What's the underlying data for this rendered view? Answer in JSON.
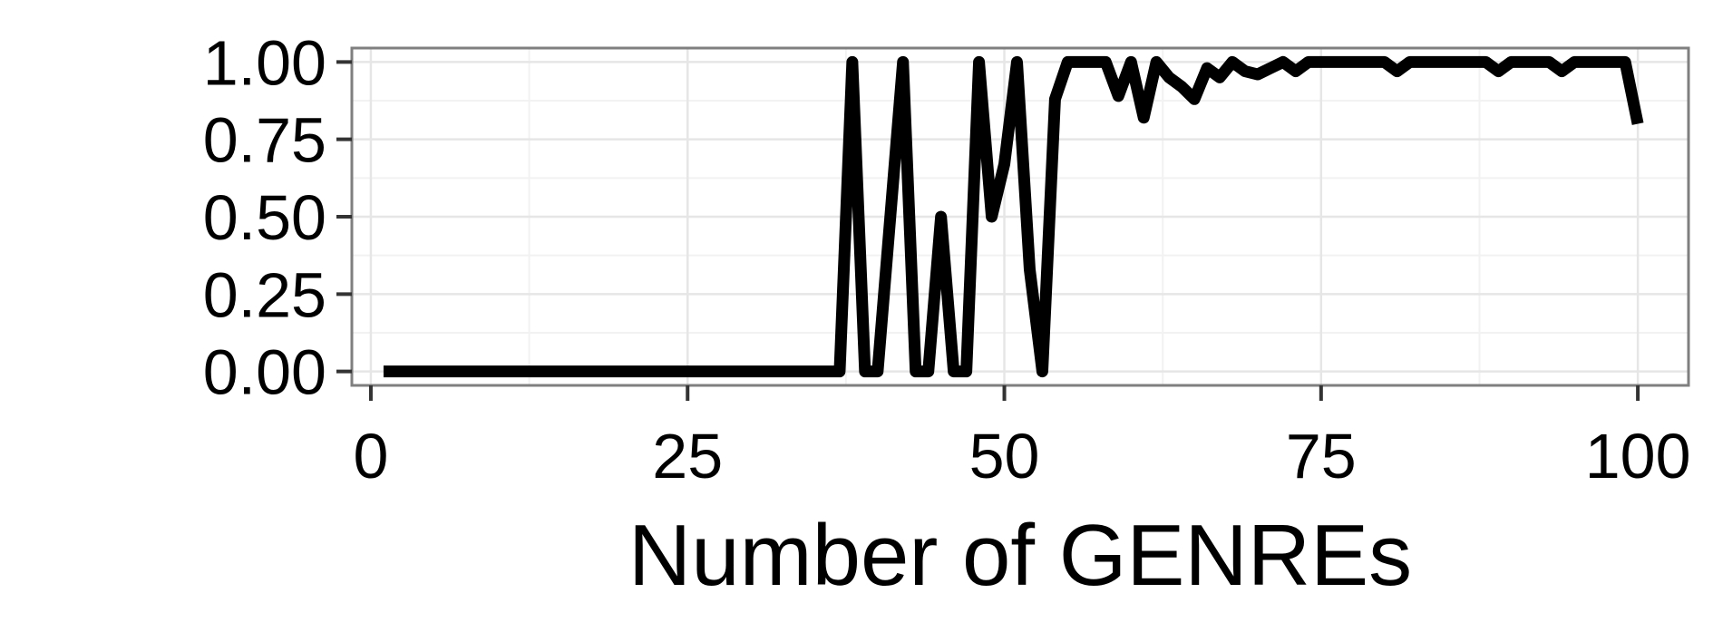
{
  "chart_data": {
    "type": "line",
    "title": "",
    "xlabel": "Number of GENREs",
    "ylabel": "",
    "xlim": [
      -1.5,
      104
    ],
    "ylim": [
      -0.045,
      1.045
    ],
    "x_ticks": [
      0,
      25,
      50,
      75,
      100
    ],
    "x_tick_labels": [
      "0",
      "25",
      "50",
      "75",
      "100"
    ],
    "y_ticks": [
      0,
      0.25,
      0.5,
      0.75,
      1
    ],
    "y_tick_labels": [
      "0.00",
      "0.25",
      "0.50",
      "0.75",
      "1.00"
    ],
    "grid": true,
    "legend": "none",
    "colors": {
      "panel_background": "#ffffff",
      "panel_border": "#7f7f7f",
      "grid_major": "#e6e6e6",
      "grid_minor": "#f2f2f2",
      "line": "#000000",
      "ticks": "#333333"
    },
    "series": [
      {
        "x": [
          1,
          2,
          3,
          4,
          5,
          6,
          7,
          8,
          9,
          10,
          11,
          12,
          13,
          14,
          15,
          16,
          17,
          18,
          19,
          20,
          21,
          22,
          23,
          24,
          25,
          26,
          27,
          28,
          29,
          30,
          31,
          32,
          33,
          34,
          35,
          36,
          37,
          38,
          39,
          40,
          41,
          42,
          43,
          44,
          45,
          46,
          47,
          48,
          49,
          50,
          51,
          52,
          53,
          54,
          55,
          56,
          57,
          58,
          59,
          60,
          61,
          62,
          63,
          64,
          65,
          66,
          67,
          68,
          69,
          70,
          71,
          72,
          73,
          74,
          75,
          76,
          77,
          78,
          79,
          80,
          81,
          82,
          83,
          84,
          85,
          86,
          87,
          88,
          89,
          90,
          91,
          92,
          93,
          94,
          95,
          96,
          97,
          98,
          99,
          100
        ],
        "y": [
          0,
          0,
          0,
          0,
          0,
          0,
          0,
          0,
          0,
          0,
          0,
          0,
          0,
          0,
          0,
          0,
          0,
          0,
          0,
          0,
          0,
          0,
          0,
          0,
          0,
          0,
          0,
          0,
          0,
          0,
          0,
          0,
          0,
          0,
          0,
          0,
          0,
          1,
          0,
          0,
          0.5,
          1,
          0,
          0,
          0.5,
          0,
          0,
          1,
          0.5,
          0.67,
          1,
          0.33,
          0,
          0.88,
          1,
          1,
          1,
          1,
          0.89,
          1,
          0.82,
          1,
          0.95,
          0.92,
          0.88,
          0.98,
          0.95,
          1,
          0.97,
          0.96,
          0.98,
          1,
          0.97,
          1,
          1,
          1,
          1,
          1,
          1,
          1,
          0.97,
          1,
          1,
          1,
          1,
          1,
          1,
          1,
          0.97,
          1,
          1,
          1,
          1,
          0.97,
          1,
          1,
          1,
          1,
          1,
          0.8
        ]
      }
    ]
  }
}
